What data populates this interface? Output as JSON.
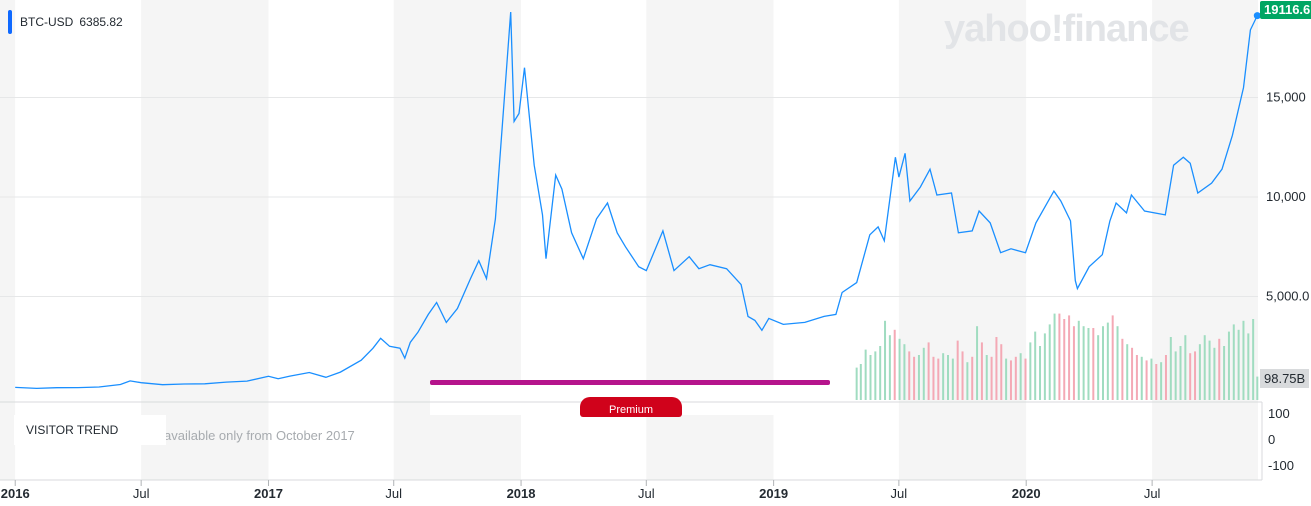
{
  "brand": {
    "logo_text": "yahoo!finance"
  },
  "legend": {
    "symbol": "BTC-USD",
    "value": "6385.82",
    "color": "#0f69ff"
  },
  "last_price_label": "19116.6",
  "volume_label": "98.75B",
  "visitor": {
    "label": "VISITOR TREND",
    "note": "available only from October 2017"
  },
  "premium": {
    "label": "Premium"
  },
  "chart_data": {
    "type": "line",
    "title": "",
    "xlabel": "",
    "ylabel": "",
    "series": [
      {
        "name": "BTC-USD",
        "color": "#1a8fff",
        "points": [
          [
            "2016-01-01",
            430
          ],
          [
            "2016-02-01",
            380
          ],
          [
            "2016-03-01",
            415
          ],
          [
            "2016-04-01",
            420
          ],
          [
            "2016-05-01",
            450
          ],
          [
            "2016-06-01",
            580
          ],
          [
            "2016-06-15",
            760
          ],
          [
            "2016-07-01",
            670
          ],
          [
            "2016-08-01",
            570
          ],
          [
            "2016-09-01",
            605
          ],
          [
            "2016-10-01",
            615
          ],
          [
            "2016-11-01",
            700
          ],
          [
            "2016-12-01",
            750
          ],
          [
            "2017-01-01",
            990
          ],
          [
            "2017-01-15",
            870
          ],
          [
            "2017-02-01",
            1000
          ],
          [
            "2017-03-01",
            1180
          ],
          [
            "2017-03-25",
            940
          ],
          [
            "2017-04-15",
            1200
          ],
          [
            "2017-05-15",
            1800
          ],
          [
            "2017-06-01",
            2400
          ],
          [
            "2017-06-12",
            2900
          ],
          [
            "2017-06-25",
            2500
          ],
          [
            "2017-07-10",
            2400
          ],
          [
            "2017-07-17",
            1900
          ],
          [
            "2017-07-25",
            2700
          ],
          [
            "2017-08-05",
            3200
          ],
          [
            "2017-08-20",
            4100
          ],
          [
            "2017-09-01",
            4700
          ],
          [
            "2017-09-15",
            3700
          ],
          [
            "2017-10-01",
            4400
          ],
          [
            "2017-10-20",
            5900
          ],
          [
            "2017-11-01",
            6800
          ],
          [
            "2017-11-12",
            5900
          ],
          [
            "2017-11-25",
            8900
          ],
          [
            "2017-12-08",
            15000
          ],
          [
            "2017-12-17",
            19300
          ],
          [
            "2017-12-22",
            13800
          ],
          [
            "2017-12-29",
            14200
          ],
          [
            "2018-01-06",
            16500
          ],
          [
            "2018-01-20",
            11600
          ],
          [
            "2018-02-01",
            9100
          ],
          [
            "2018-02-06",
            6900
          ],
          [
            "2018-02-20",
            11100
          ],
          [
            "2018-03-01",
            10400
          ],
          [
            "2018-03-15",
            8200
          ],
          [
            "2018-04-01",
            6900
          ],
          [
            "2018-04-20",
            8900
          ],
          [
            "2018-05-06",
            9700
          ],
          [
            "2018-05-20",
            8200
          ],
          [
            "2018-06-01",
            7500
          ],
          [
            "2018-06-20",
            6500
          ],
          [
            "2018-07-01",
            6300
          ],
          [
            "2018-07-25",
            8300
          ],
          [
            "2018-08-10",
            6300
          ],
          [
            "2018-09-01",
            7000
          ],
          [
            "2018-09-15",
            6400
          ],
          [
            "2018-10-01",
            6600
          ],
          [
            "2018-10-25",
            6400
          ],
          [
            "2018-11-15",
            5600
          ],
          [
            "2018-11-25",
            4000
          ],
          [
            "2018-12-05",
            3800
          ],
          [
            "2018-12-15",
            3300
          ],
          [
            "2018-12-25",
            3900
          ],
          [
            "2019-01-15",
            3600
          ],
          [
            "2019-02-15",
            3700
          ],
          [
            "2019-03-15",
            4000
          ],
          [
            "2019-04-01",
            4100
          ],
          [
            "2019-04-10",
            5200
          ],
          [
            "2019-05-01",
            5700
          ],
          [
            "2019-05-20",
            8100
          ],
          [
            "2019-06-01",
            8500
          ],
          [
            "2019-06-10",
            7800
          ],
          [
            "2019-06-26",
            12000
          ],
          [
            "2019-07-01",
            11000
          ],
          [
            "2019-07-10",
            12200
          ],
          [
            "2019-07-17",
            9800
          ],
          [
            "2019-08-01",
            10500
          ],
          [
            "2019-08-15",
            11400
          ],
          [
            "2019-08-25",
            10100
          ],
          [
            "2019-09-15",
            10200
          ],
          [
            "2019-09-25",
            8200
          ],
          [
            "2019-10-15",
            8300
          ],
          [
            "2019-10-25",
            9300
          ],
          [
            "2019-11-10",
            8700
          ],
          [
            "2019-11-25",
            7200
          ],
          [
            "2019-12-10",
            7400
          ],
          [
            "2019-12-31",
            7200
          ],
          [
            "2020-01-15",
            8700
          ],
          [
            "2020-02-10",
            10300
          ],
          [
            "2020-02-20",
            9800
          ],
          [
            "2020-03-05",
            8800
          ],
          [
            "2020-03-12",
            5800
          ],
          [
            "2020-03-15",
            5400
          ],
          [
            "2020-04-01",
            6500
          ],
          [
            "2020-04-20",
            7100
          ],
          [
            "2020-05-01",
            8800
          ],
          [
            "2020-05-10",
            9700
          ],
          [
            "2020-05-25",
            9200
          ],
          [
            "2020-06-01",
            10100
          ],
          [
            "2020-06-20",
            9300
          ],
          [
            "2020-07-20",
            9100
          ],
          [
            "2020-08-01",
            11600
          ],
          [
            "2020-08-15",
            12000
          ],
          [
            "2020-08-25",
            11700
          ],
          [
            "2020-09-05",
            10200
          ],
          [
            "2020-09-25",
            10700
          ],
          [
            "2020-10-10",
            11400
          ],
          [
            "2020-10-25",
            13100
          ],
          [
            "2020-11-10",
            15500
          ],
          [
            "2020-11-20",
            18400
          ],
          [
            "2020-11-30",
            19116.6
          ]
        ]
      }
    ],
    "volume": {
      "name": "Volume",
      "up_color": "#a0dcc0",
      "down_color": "#f4a9b5",
      "bars": [
        [
          "2019-05-01",
          36000000000.0,
          "up"
        ],
        [
          "2019-05-07",
          40000000000.0,
          "up"
        ],
        [
          "2019-05-14",
          56000000000.0,
          "up"
        ],
        [
          "2019-05-21",
          50000000000.0,
          "up"
        ],
        [
          "2019-05-28",
          54000000000.0,
          "up"
        ],
        [
          "2019-06-04",
          60000000000.0,
          "up"
        ],
        [
          "2019-06-11",
          88000000000.0,
          "up"
        ],
        [
          "2019-06-18",
          72000000000.0,
          "up"
        ],
        [
          "2019-06-25",
          78000000000.0,
          "down"
        ],
        [
          "2019-07-02",
          68000000000.0,
          "up"
        ],
        [
          "2019-07-09",
          62000000000.0,
          "up"
        ],
        [
          "2019-07-16",
          54000000000.0,
          "down"
        ],
        [
          "2019-07-23",
          48000000000.0,
          "down"
        ],
        [
          "2019-07-30",
          50000000000.0,
          "up"
        ],
        [
          "2019-08-06",
          58000000000.0,
          "up"
        ],
        [
          "2019-08-13",
          64000000000.0,
          "down"
        ],
        [
          "2019-08-20",
          48000000000.0,
          "down"
        ],
        [
          "2019-08-27",
          46000000000.0,
          "down"
        ],
        [
          "2019-09-03",
          52000000000.0,
          "up"
        ],
        [
          "2019-09-10",
          50000000000.0,
          "up"
        ],
        [
          "2019-09-17",
          46000000000.0,
          "up"
        ],
        [
          "2019-09-24",
          66000000000.0,
          "down"
        ],
        [
          "2019-10-01",
          54000000000.0,
          "down"
        ],
        [
          "2019-10-08",
          42000000000.0,
          "up"
        ],
        [
          "2019-10-15",
          48000000000.0,
          "down"
        ],
        [
          "2019-10-22",
          82000000000.0,
          "up"
        ],
        [
          "2019-10-29",
          64000000000.0,
          "down"
        ],
        [
          "2019-11-05",
          50000000000.0,
          "up"
        ],
        [
          "2019-11-12",
          48000000000.0,
          "down"
        ],
        [
          "2019-11-19",
          70000000000.0,
          "down"
        ],
        [
          "2019-11-26",
          62000000000.0,
          "down"
        ],
        [
          "2019-12-03",
          46000000000.0,
          "up"
        ],
        [
          "2019-12-10",
          44000000000.0,
          "down"
        ],
        [
          "2019-12-17",
          48000000000.0,
          "down"
        ],
        [
          "2019-12-24",
          52000000000.0,
          "up"
        ],
        [
          "2019-12-31",
          46000000000.0,
          "down"
        ],
        [
          "2020-01-07",
          64000000000.0,
          "up"
        ],
        [
          "2020-01-14",
          76000000000.0,
          "up"
        ],
        [
          "2020-01-21",
          60000000000.0,
          "up"
        ],
        [
          "2020-01-28",
          74000000000.0,
          "up"
        ],
        [
          "2020-02-04",
          84000000000.0,
          "up"
        ],
        [
          "2020-02-11",
          96000000000.0,
          "up"
        ],
        [
          "2020-02-18",
          96000000000.0,
          "down"
        ],
        [
          "2020-02-25",
          90000000000.0,
          "down"
        ],
        [
          "2020-03-03",
          94000000000.0,
          "down"
        ],
        [
          "2020-03-10",
          82000000000.0,
          "down"
        ],
        [
          "2020-03-17",
          88000000000.0,
          "up"
        ],
        [
          "2020-03-24",
          82000000000.0,
          "up"
        ],
        [
          "2020-03-31",
          80000000000.0,
          "up"
        ],
        [
          "2020-04-07",
          80000000000.0,
          "down"
        ],
        [
          "2020-04-14",
          72000000000.0,
          "up"
        ],
        [
          "2020-04-21",
          82000000000.0,
          "up"
        ],
        [
          "2020-04-28",
          86000000000.0,
          "up"
        ],
        [
          "2020-05-05",
          94000000000.0,
          "down"
        ],
        [
          "2020-05-12",
          82000000000.0,
          "up"
        ],
        [
          "2020-05-19",
          68000000000.0,
          "down"
        ],
        [
          "2020-05-26",
          62000000000.0,
          "up"
        ],
        [
          "2020-06-02",
          58000000000.0,
          "down"
        ],
        [
          "2020-06-09",
          50000000000.0,
          "down"
        ],
        [
          "2020-06-16",
          48000000000.0,
          "up"
        ],
        [
          "2020-06-23",
          44000000000.0,
          "down"
        ],
        [
          "2020-06-30",
          46000000000.0,
          "up"
        ],
        [
          "2020-07-07",
          40000000000.0,
          "down"
        ],
        [
          "2020-07-14",
          42000000000.0,
          "up"
        ],
        [
          "2020-07-21",
          50000000000.0,
          "down"
        ],
        [
          "2020-07-28",
          70000000000.0,
          "up"
        ],
        [
          "2020-08-04",
          54000000000.0,
          "up"
        ],
        [
          "2020-08-11",
          60000000000.0,
          "up"
        ],
        [
          "2020-08-18",
          72000000000.0,
          "up"
        ],
        [
          "2020-08-25",
          52000000000.0,
          "down"
        ],
        [
          "2020-09-01",
          54000000000.0,
          "down"
        ],
        [
          "2020-09-08",
          62000000000.0,
          "up"
        ],
        [
          "2020-09-15",
          72000000000.0,
          "up"
        ],
        [
          "2020-09-22",
          66000000000.0,
          "up"
        ],
        [
          "2020-09-29",
          58000000000.0,
          "up"
        ],
        [
          "2020-10-06",
          68000000000.0,
          "down"
        ],
        [
          "2020-10-13",
          60000000000.0,
          "up"
        ],
        [
          "2020-10-20",
          76000000000.0,
          "up"
        ],
        [
          "2020-10-27",
          84000000000.0,
          "up"
        ],
        [
          "2020-11-03",
          78000000000.0,
          "up"
        ],
        [
          "2020-11-10",
          88000000000.0,
          "up"
        ],
        [
          "2020-11-17",
          74000000000.0,
          "up"
        ],
        [
          "2020-11-24",
          90000000000.0,
          "up"
        ],
        [
          "2020-11-30",
          26000000000.0,
          "up"
        ]
      ]
    },
    "x_ticks": [
      {
        "date": "2016-01-01",
        "label": "2016",
        "bold": true
      },
      {
        "date": "2016-07-01",
        "label": "Jul",
        "bold": false
      },
      {
        "date": "2017-01-01",
        "label": "2017",
        "bold": true
      },
      {
        "date": "2017-07-01",
        "label": "Jul",
        "bold": false
      },
      {
        "date": "2018-01-01",
        "label": "2018",
        "bold": true
      },
      {
        "date": "2018-07-01",
        "label": "Jul",
        "bold": false
      },
      {
        "date": "2019-01-01",
        "label": "2019",
        "bold": true
      },
      {
        "date": "2019-07-01",
        "label": "Jul",
        "bold": false
      },
      {
        "date": "2020-01-01",
        "label": "2020",
        "bold": true
      },
      {
        "date": "2020-07-01",
        "label": "Jul",
        "bold": false
      }
    ],
    "y_ticks": [
      {
        "value": 5000,
        "label": "5,000.0"
      },
      {
        "value": 10000,
        "label": "10,000"
      },
      {
        "value": 15000,
        "label": "15,000"
      }
    ],
    "ylim": [
      0,
      19500
    ],
    "xlim": [
      "2015-12-10",
      "2020-12-01"
    ],
    "volume_axis_ticks": [
      {
        "value": 100,
        "label": "100"
      },
      {
        "value": 0,
        "label": "0"
      },
      {
        "value": -100,
        "label": "-100"
      }
    ],
    "grid": true,
    "scale": "linear"
  }
}
